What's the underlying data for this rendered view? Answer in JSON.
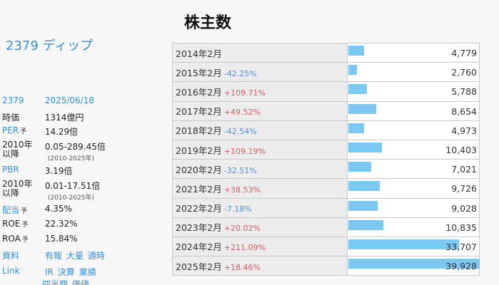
{
  "company": "2379 ディップ",
  "title": "株主数",
  "info": {
    "code": "2379",
    "date": "2025/06/18",
    "market_cap_label": "時価",
    "market_cap": "1314億円",
    "per_label": "PER",
    "per_sup": "予",
    "per": "14.29倍",
    "per_range_label": "2010年以降",
    "per_range": "0.05-289.45倍",
    "per_range_years": "(2010-2025年)",
    "pbr_label": "PBR",
    "pbr": "3.19倍",
    "pbr_range_label": "2010年以降",
    "pbr_range": "0.01-17.51倍",
    "pbr_range_years": "(2010-2025年)",
    "div_label": "配当",
    "div_sup": "予",
    "div": "4.35%",
    "roe_label": "ROE",
    "roe_sup": "予",
    "roe": "22.32%",
    "roa_label": "ROA",
    "roa_sup": "予",
    "roa": "15.84%",
    "docs_label": "資料",
    "docs_links": [
      "有報",
      "大量",
      "適時"
    ],
    "link_label": "Link",
    "link_links": [
      "IR",
      "決算",
      "業績"
    ],
    "link_links2": [
      "四半期",
      "価値"
    ]
  },
  "chart_data": {
    "type": "bar",
    "title": "株主数",
    "categories": [
      "2014年2月",
      "2015年2月",
      "2016年2月",
      "2017年2月",
      "2018年2月",
      "2019年2月",
      "2020年2月",
      "2021年2月",
      "2022年2月",
      "2023年2月",
      "2024年2月",
      "2025年2月"
    ],
    "changes": [
      "",
      "-42.25%",
      "+109.71%",
      "+49.52%",
      "-42.54%",
      "+109.19%",
      "-32.51%",
      "+38.53%",
      "-7.18%",
      "+20.02%",
      "+211.09%",
      "+18.46%"
    ],
    "values": [
      4779,
      2760,
      5788,
      8654,
      4973,
      10403,
      7021,
      9726,
      9028,
      10835,
      33707,
      39928
    ],
    "value_labels": [
      "4,779",
      "2,760",
      "5,788",
      "8,654",
      "4,973",
      "10,403",
      "7,021",
      "9,726",
      "9,028",
      "10,835",
      "33,707",
      "39,928"
    ],
    "max": 39928
  },
  "colors": {
    "bar": "#7cc8f3",
    "neg": "#5b8fd6",
    "pos": "#d06060",
    "link": "#3a8fd0"
  }
}
